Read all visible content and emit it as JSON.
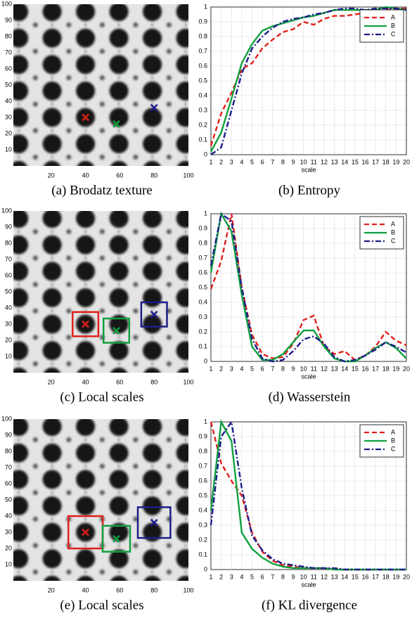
{
  "chart_data": [
    {
      "type": "image",
      "caption": "(a) Brodatz texture",
      "xlim": [
        0,
        100
      ],
      "ylim": [
        0,
        100
      ],
      "xticks": [
        20,
        40,
        60,
        80,
        100
      ],
      "yticks": [
        10,
        20,
        30,
        40,
        50,
        60,
        70,
        80,
        90,
        100
      ],
      "markers": [
        {
          "x": 40,
          "y": 30,
          "color": "#e0201b"
        },
        {
          "x": 58,
          "y": 26,
          "color": "#10a040"
        },
        {
          "x": 80,
          "y": 36,
          "color": "#1c1c8c"
        }
      ]
    },
    {
      "type": "line",
      "caption": "(b) Entropy",
      "xlabel": "scale",
      "grid": true,
      "legend": "upper right",
      "x": [
        1,
        2,
        3,
        4,
        5,
        6,
        7,
        8,
        9,
        10,
        11,
        12,
        13,
        14,
        15,
        16,
        17,
        18,
        19,
        20
      ],
      "xlim": [
        1,
        20
      ],
      "ylim": [
        0,
        1
      ],
      "xticks": [
        1,
        2,
        3,
        4,
        5,
        6,
        7,
        8,
        9,
        10,
        11,
        12,
        13,
        14,
        15,
        16,
        17,
        18,
        19,
        20
      ],
      "yticks": [
        0,
        0.1,
        0.2,
        0.3,
        0.4,
        0.5,
        0.6,
        0.7,
        0.8,
        0.9,
        1
      ],
      "series": [
        {
          "name": "A",
          "color": "#e0201b",
          "linestyle": "dashed",
          "values": [
            0.06,
            0.28,
            0.42,
            0.58,
            0.62,
            0.72,
            0.78,
            0.83,
            0.85,
            0.9,
            0.88,
            0.92,
            0.94,
            0.94,
            0.95,
            0.96,
            0.97,
            0.98,
            0.99,
            0.99
          ]
        },
        {
          "name": "B",
          "color": "#10a040",
          "linestyle": "solid",
          "values": [
            0.02,
            0.15,
            0.38,
            0.62,
            0.75,
            0.84,
            0.87,
            0.89,
            0.91,
            0.93,
            0.94,
            0.96,
            0.98,
            0.98,
            0.98,
            0.98,
            0.98,
            1.0,
            0.99,
            0.98
          ]
        },
        {
          "name": "C",
          "color": "#1c1c8c",
          "linestyle": "dashdot",
          "values": [
            0.0,
            0.05,
            0.3,
            0.55,
            0.72,
            0.8,
            0.86,
            0.9,
            0.92,
            0.93,
            0.95,
            0.96,
            0.98,
            0.99,
            0.99,
            0.98,
            0.99,
            0.99,
            0.99,
            0.98
          ]
        }
      ]
    },
    {
      "type": "image",
      "caption": "(c) Local scales",
      "xlim": [
        0,
        100
      ],
      "ylim": [
        0,
        100
      ],
      "xticks": [
        20,
        40,
        60,
        80,
        100
      ],
      "yticks": [
        10,
        20,
        30,
        40,
        50,
        60,
        70,
        80,
        90,
        100
      ],
      "markers": [
        {
          "x": 40,
          "y": 30,
          "color": "#e0201b",
          "box_size": 15
        },
        {
          "x": 58,
          "y": 26,
          "color": "#10a040",
          "box_size": 15
        },
        {
          "x": 80,
          "y": 36,
          "color": "#1c1c8c",
          "box_size": 15
        }
      ]
    },
    {
      "type": "line",
      "caption": "(d) Wasserstein",
      "xlabel": "scale",
      "grid": true,
      "legend": "upper right",
      "x": [
        1,
        2,
        3,
        4,
        5,
        6,
        7,
        8,
        9,
        10,
        11,
        12,
        13,
        14,
        15,
        16,
        17,
        18,
        19,
        20
      ],
      "xlim": [
        1,
        20
      ],
      "ylim": [
        0,
        1
      ],
      "xticks": [
        1,
        2,
        3,
        4,
        5,
        6,
        7,
        8,
        9,
        10,
        11,
        12,
        13,
        14,
        15,
        16,
        17,
        18,
        19,
        20
      ],
      "yticks": [
        0,
        0.1,
        0.2,
        0.3,
        0.4,
        0.5,
        0.6,
        0.7,
        0.8,
        0.9,
        1
      ],
      "series": [
        {
          "name": "A",
          "color": "#e0201b",
          "linestyle": "dashed",
          "values": [
            0.49,
            0.68,
            1.0,
            0.5,
            0.18,
            0.05,
            0.02,
            0.03,
            0.12,
            0.28,
            0.31,
            0.1,
            0.05,
            0.07,
            0.01,
            0.04,
            0.1,
            0.2,
            0.14,
            0.11
          ]
        },
        {
          "name": "B",
          "color": "#10a040",
          "linestyle": "solid",
          "values": [
            0.6,
            1.0,
            0.88,
            0.45,
            0.1,
            0.01,
            0.01,
            0.05,
            0.13,
            0.21,
            0.21,
            0.1,
            0.02,
            0.0,
            0.0,
            0.04,
            0.09,
            0.13,
            0.09,
            0.02
          ]
        },
        {
          "name": "C",
          "color": "#1c1c8c",
          "linestyle": "dashdot",
          "values": [
            0.65,
            1.0,
            0.95,
            0.5,
            0.15,
            0.02,
            0.0,
            0.01,
            0.07,
            0.15,
            0.17,
            0.12,
            0.03,
            0.0,
            0.01,
            0.04,
            0.08,
            0.13,
            0.1,
            0.06
          ]
        }
      ]
    },
    {
      "type": "image",
      "caption": "(e) Local scales",
      "xlim": [
        0,
        100
      ],
      "ylim": [
        0,
        100
      ],
      "xticks": [
        20,
        40,
        60,
        80,
        100
      ],
      "yticks": [
        10,
        20,
        30,
        40,
        50,
        60,
        70,
        80,
        90,
        100
      ],
      "markers": [
        {
          "x": 40,
          "y": 30,
          "color": "#e0201b",
          "box_size": 20
        },
        {
          "x": 58,
          "y": 26,
          "color": "#10a040",
          "box_size": 16
        },
        {
          "x": 80,
          "y": 36,
          "color": "#1c1c8c",
          "box_size": 19
        }
      ]
    },
    {
      "type": "line",
      "caption": "(f) KL divergence",
      "xlabel": "scale",
      "grid": true,
      "legend": "upper right",
      "x": [
        1,
        2,
        3,
        4,
        5,
        6,
        7,
        8,
        9,
        10,
        11,
        12,
        13,
        14,
        15,
        16,
        17,
        18,
        19,
        20
      ],
      "xlim": [
        1,
        20
      ],
      "ylim": [
        0,
        1
      ],
      "xticks": [
        1,
        2,
        3,
        4,
        5,
        6,
        7,
        8,
        9,
        10,
        11,
        12,
        13,
        14,
        15,
        16,
        17,
        18,
        19,
        20
      ],
      "yticks": [
        0,
        0.1,
        0.2,
        0.3,
        0.4,
        0.5,
        0.6,
        0.7,
        0.8,
        0.9,
        1
      ],
      "series": [
        {
          "name": "A",
          "color": "#e0201b",
          "linestyle": "dashed",
          "values": [
            1.0,
            0.72,
            0.6,
            0.5,
            0.25,
            0.12,
            0.06,
            0.03,
            0.02,
            0.01,
            0.01,
            0.01,
            0.0,
            0.0,
            0.0,
            0.0,
            0.0,
            0.0,
            0.0,
            0.0
          ]
        },
        {
          "name": "B",
          "color": "#10a040",
          "linestyle": "solid",
          "values": [
            0.4,
            1.0,
            0.87,
            0.25,
            0.14,
            0.08,
            0.04,
            0.02,
            0.01,
            0.01,
            0.01,
            0.01,
            0.0,
            0.0,
            0.0,
            0.0,
            0.0,
            0.0,
            0.0,
            0.0
          ]
        },
        {
          "name": "C",
          "color": "#1c1c8c",
          "linestyle": "dashdot",
          "values": [
            0.3,
            0.9,
            1.0,
            0.55,
            0.23,
            0.13,
            0.07,
            0.04,
            0.03,
            0.02,
            0.01,
            0.01,
            0.01,
            0.0,
            0.0,
            0.0,
            0.0,
            0.0,
            0.0,
            0.0
          ]
        }
      ]
    }
  ]
}
